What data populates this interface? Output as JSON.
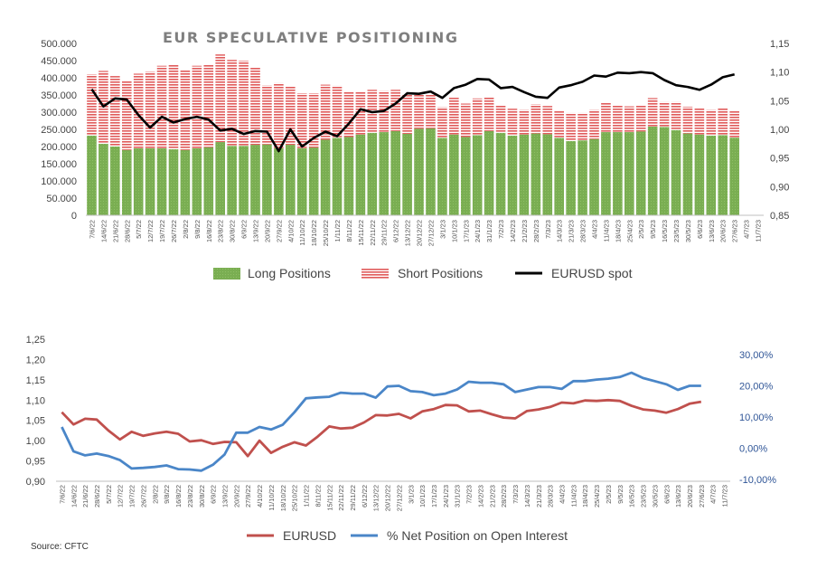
{
  "source_label": "Source: CFTC",
  "chart_data": [
    {
      "type": "bar",
      "stacked": true,
      "title": "EUR SPECULATIVE POSITIONING",
      "categories": [
        "7/6/22",
        "14/6/22",
        "21/6/22",
        "28/6/22",
        "5/7/22",
        "12/7/22",
        "19/7/22",
        "26/7/22",
        "2/8/22",
        "9/8/22",
        "16/8/22",
        "23/8/22",
        "30/8/22",
        "6/9/22",
        "13/9/22",
        "20/9/22",
        "27/9/22",
        "4/10/22",
        "11/10/22",
        "18/10/22",
        "25/10/22",
        "1/11/22",
        "8/11/22",
        "15/11/22",
        "22/11/22",
        "29/11/22",
        "6/12/22",
        "13/12/22",
        "20/12/22",
        "27/12/22",
        "3/1/23",
        "10/1/23",
        "17/1/23",
        "24/1/23",
        "31/1/23",
        "7/2/23",
        "14/2/23",
        "21/2/23",
        "28/2/23",
        "7/3/23",
        "14/3/23",
        "21/3/23",
        "28/3/23",
        "4/4/23",
        "11/4/23",
        "18/4/23",
        "25/4/23",
        "2/5/23",
        "9/5/23",
        "16/5/23",
        "23/5/23",
        "30/5/23",
        "6/6/23",
        "13/6/23",
        "20/6/23",
        "27/6/23",
        "4/7/23",
        "11/7/23"
      ],
      "tick_labels": [
        "7/6/22",
        "14/6/22",
        "21/6/22",
        "28/6/22",
        "5/7/22",
        "12/7/22",
        "19/7/22",
        "26/7/22",
        "2/8/22",
        "9/8/22",
        "16/8/22",
        "23/8/22",
        "30/8/22",
        "6/9/22",
        "13/9/22",
        "20/9/22",
        "27/9/22",
        "4/10/22",
        "11/10/22",
        "18/10/22",
        "25/10/22",
        "1/11/22",
        "8/11/22",
        "15/11/22",
        "22/11/22",
        "29/11/22",
        "6/12/22",
        "13/12/22",
        "20/12/22",
        "27/12/22",
        "3/1/23",
        "10/1/23",
        "17/1/23",
        "24/1/23",
        "31/1/23",
        "7/2/23",
        "14/2/23",
        "21/2/23",
        "28/2/23",
        "7/3/23",
        "14/3/23",
        "21/3/23",
        "28/3/23",
        "4/4/23",
        "11/4/23",
        "18/4/23",
        "25/4/23",
        "2/5/23",
        "9/5/23",
        "16/5/23",
        "23/5/23",
        "30/5/23",
        "6/6/23",
        "13/6/23",
        "20/6/23",
        "27/6/23",
        "4/7/23",
        "11/7/23"
      ],
      "y_left_ticks": [
        "0",
        "50.000",
        "100.000",
        "150.000",
        "200.000",
        "250.000",
        "300.000",
        "350.000",
        "400.000",
        "450.000",
        "500.000"
      ],
      "y_right_ticks": [
        "0,85",
        "0,90",
        "0,95",
        "1,00",
        "1,05",
        "1,10",
        "1,15"
      ],
      "ylim_left": [
        0,
        500000
      ],
      "ylim_right": [
        0.85,
        1.15
      ],
      "series": [
        {
          "name": "Long Positions",
          "kind": "bar",
          "color": "#70ad47",
          "values": [
            232000,
            208000,
            200000,
            190000,
            195000,
            195000,
            195000,
            192000,
            190000,
            195000,
            198000,
            213000,
            202000,
            202000,
            205000,
            206000,
            195000,
            205000,
            195000,
            197000,
            220000,
            225000,
            228000,
            235000,
            240000,
            242000,
            245000,
            237000,
            252000,
            253000,
            225000,
            235000,
            228000,
            233000,
            245000,
            240000,
            232000,
            235000,
            238000,
            236000,
            225000,
            216000,
            218000,
            222000,
            242000,
            242000,
            242000,
            244000,
            258000,
            257000,
            248000,
            238000,
            235000,
            232000,
            233000,
            226000,
            0,
            0
          ]
        },
        {
          "name": "Short Positions",
          "kind": "bar",
          "color": "#e05a5a",
          "values": [
            178000,
            212000,
            205000,
            200000,
            217000,
            223000,
            240000,
            245000,
            232000,
            240000,
            240000,
            255000,
            250000,
            248000,
            225000,
            172000,
            190000,
            170000,
            160000,
            158000,
            160000,
            152000,
            130000,
            125000,
            125000,
            120000,
            120000,
            115000,
            103000,
            100000,
            90000,
            107000,
            97000,
            107000,
            100000,
            80000,
            78000,
            72000,
            85000,
            82000,
            80000,
            82000,
            80000,
            85000,
            85000,
            78000,
            75000,
            77000,
            83000,
            73000,
            82000,
            78000,
            78000,
            75000,
            80000,
            78000,
            0,
            0
          ]
        },
        {
          "name": "EURUSD spot",
          "kind": "line",
          "color": "#000000",
          "values": [
            1.07,
            1.04,
            1.054,
            1.052,
            1.025,
            1.003,
            1.022,
            1.012,
            1.018,
            1.022,
            1.017,
            0.998,
            1.001,
            0.992,
            0.997,
            0.996,
            0.962,
            1.0,
            0.97,
            0.985,
            0.996,
            0.988,
            1.01,
            1.035,
            1.03,
            1.032,
            1.045,
            1.063,
            1.062,
            1.066,
            1.055,
            1.072,
            1.078,
            1.088,
            1.087,
            1.072,
            1.074,
            1.065,
            1.057,
            1.055,
            1.073,
            1.077,
            1.083,
            1.094,
            1.092,
            1.099,
            1.098,
            1.1,
            1.098,
            1.086,
            1.077,
            1.074,
            1.069,
            1.078,
            1.091,
            1.096,
            null,
            null
          ]
        }
      ],
      "legend_position": "bottom",
      "grid": false
    },
    {
      "type": "line",
      "categories": [
        "7/6/22",
        "14/6/22",
        "21/6/22",
        "28/6/22",
        "5/7/22",
        "12/7/22",
        "19/7/22",
        "26/7/22",
        "2/8/22",
        "9/8/22",
        "16/8/22",
        "23/8/22",
        "30/8/22",
        "6/9/22",
        "13/9/22",
        "20/9/22",
        "27/9/22",
        "4/10/22",
        "11/10/22",
        "18/10/22",
        "25/10/22",
        "1/11/22",
        "8/11/22",
        "15/11/22",
        "22/11/22",
        "29/11/22",
        "6/12/22",
        "13/12/22",
        "20/12/22",
        "27/12/22",
        "3/1/23",
        "10/1/23",
        "17/1/23",
        "24/1/23",
        "31/1/23",
        "7/2/23",
        "14/2/23",
        "21/2/23",
        "28/2/23",
        "7/3/23",
        "14/3/23",
        "21/3/23",
        "28/3/23",
        "4/4/23",
        "11/4/23",
        "18/4/23",
        "25/4/23",
        "2/5/23",
        "9/5/23",
        "16/5/23",
        "23/5/23",
        "30/5/23",
        "6/6/23",
        "13/6/23",
        "20/6/23",
        "27/6/23",
        "4/7/23",
        "11/7/23"
      ],
      "tick_labels": [
        "7/6/22",
        "14/6/22",
        "21/6/22",
        "28/6/22",
        "5/7/22",
        "12/7/22",
        "19/7/22",
        "26/7/22",
        "2/8/22",
        "9/8/22",
        "16/8/22",
        "23/8/22",
        "30/8/22",
        "6/9/22",
        "13/9/22",
        "20/9/22",
        "27/9/22",
        "4/10/22",
        "11/10/22",
        "18/10/22",
        "25/10/22",
        "1/11/22",
        "8/11/22",
        "15/11/22",
        "22/11/22",
        "29/11/22",
        "6/12/22",
        "13/12/22",
        "20/12/22",
        "27/12/22",
        "3/1/23",
        "10/1/23",
        "17/1/23",
        "24/1/23",
        "31/1/23",
        "7/2/23",
        "14/2/23",
        "21/2/23",
        "28/2/23",
        "7/3/23",
        "14/3/23",
        "21/3/23",
        "28/3/23",
        "4/4/23",
        "11/4/23",
        "18/4/23",
        "25/4/23",
        "2/5/23",
        "9/5/23",
        "16/5/23",
        "23/5/23",
        "30/5/23",
        "6/6/23",
        "13/6/23",
        "20/6/23",
        "27/6/23",
        "4/7/23",
        "11/7/23"
      ],
      "y_left_ticks": [
        "0,90",
        "0,95",
        "1,00",
        "1,05",
        "1,10",
        "1,15",
        "1,20",
        "1,25"
      ],
      "y_right_ticks": [
        "-10,00%",
        "0,00%",
        "10,00%",
        "20,00%",
        "30,00%"
      ],
      "ylim_left": [
        0.9,
        1.25
      ],
      "ylim_right": [
        -0.1,
        0.3
      ],
      "series": [
        {
          "name": "EURUSD",
          "axis": "left",
          "color": "#c0504d",
          "values": [
            1.07,
            1.04,
            1.054,
            1.052,
            1.025,
            1.003,
            1.022,
            1.012,
            1.018,
            1.022,
            1.017,
            0.998,
            1.001,
            0.992,
            0.997,
            0.996,
            0.962,
            1.0,
            0.97,
            0.985,
            0.996,
            0.988,
            1.01,
            1.035,
            1.03,
            1.032,
            1.045,
            1.063,
            1.062,
            1.066,
            1.055,
            1.072,
            1.078,
            1.088,
            1.087,
            1.072,
            1.074,
            1.065,
            1.057,
            1.055,
            1.073,
            1.077,
            1.083,
            1.094,
            1.092,
            1.099,
            1.098,
            1.1,
            1.098,
            1.086,
            1.077,
            1.074,
            1.069,
            1.078,
            1.091,
            1.096,
            null,
            null
          ]
        },
        {
          "name": "% Net Position on Open Interest",
          "axis": "right",
          "color": "#4a86c8",
          "values": [
            0.068,
            -0.01,
            -0.023,
            -0.017,
            -0.025,
            -0.038,
            -0.065,
            -0.063,
            -0.06,
            -0.055,
            -0.067,
            -0.068,
            -0.072,
            -0.053,
            -0.02,
            0.05,
            0.05,
            0.068,
            0.06,
            0.075,
            0.115,
            0.16,
            0.163,
            0.165,
            0.178,
            0.175,
            0.175,
            0.162,
            0.198,
            0.2,
            0.183,
            0.18,
            0.17,
            0.175,
            0.188,
            0.213,
            0.21,
            0.21,
            0.205,
            0.18,
            0.188,
            0.196,
            0.196,
            0.19,
            0.215,
            0.215,
            0.22,
            0.223,
            0.228,
            0.242,
            0.225,
            0.215,
            0.205,
            0.187,
            0.2,
            0.2,
            null,
            null
          ]
        }
      ],
      "legend_position": "bottom",
      "grid": false
    }
  ]
}
